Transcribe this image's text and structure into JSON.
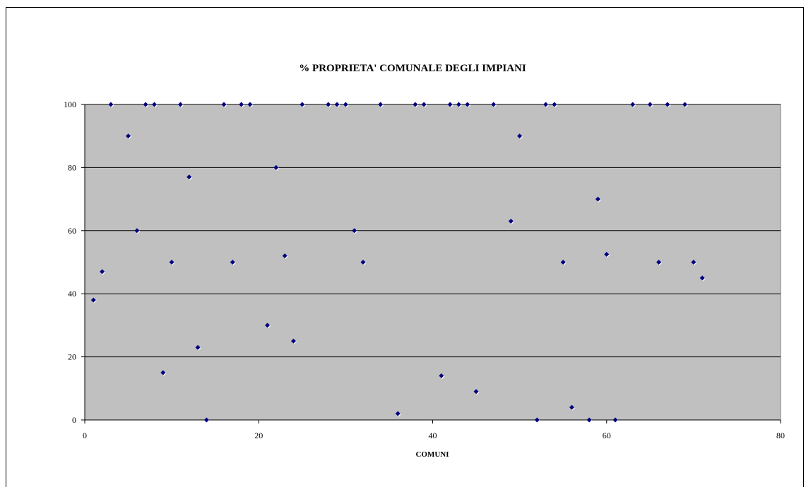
{
  "chart_data": {
    "type": "scatter",
    "title": "% PROPRIETA' COMUNALE DEGLI IMPIANI",
    "xlabel": "COMUNI",
    "ylabel": "",
    "xlim": [
      0,
      80
    ],
    "ylim": [
      0,
      100
    ],
    "x_ticks": [
      0,
      20,
      40,
      60,
      80
    ],
    "y_ticks": [
      0,
      20,
      40,
      60,
      80,
      100
    ],
    "grid": "horizontal",
    "plot_background": "#c0c0c0",
    "marker_color": "#000080",
    "marker": "diamond",
    "points": [
      {
        "x": 1,
        "y": 38
      },
      {
        "x": 2,
        "y": 47
      },
      {
        "x": 3,
        "y": 100
      },
      {
        "x": 5,
        "y": 90
      },
      {
        "x": 6,
        "y": 60
      },
      {
        "x": 7,
        "y": 100
      },
      {
        "x": 8,
        "y": 100
      },
      {
        "x": 9,
        "y": 15
      },
      {
        "x": 10,
        "y": 50
      },
      {
        "x": 11,
        "y": 100
      },
      {
        "x": 12,
        "y": 77
      },
      {
        "x": 13,
        "y": 23
      },
      {
        "x": 14,
        "y": 0
      },
      {
        "x": 16,
        "y": 100
      },
      {
        "x": 17,
        "y": 50
      },
      {
        "x": 18,
        "y": 100
      },
      {
        "x": 19,
        "y": 100
      },
      {
        "x": 21,
        "y": 30
      },
      {
        "x": 22,
        "y": 80
      },
      {
        "x": 23,
        "y": 52
      },
      {
        "x": 24,
        "y": 25
      },
      {
        "x": 25,
        "y": 100
      },
      {
        "x": 28,
        "y": 100
      },
      {
        "x": 29,
        "y": 100
      },
      {
        "x": 30,
        "y": 100
      },
      {
        "x": 31,
        "y": 60
      },
      {
        "x": 32,
        "y": 50
      },
      {
        "x": 34,
        "y": 100
      },
      {
        "x": 36,
        "y": 2
      },
      {
        "x": 38,
        "y": 100
      },
      {
        "x": 39,
        "y": 100
      },
      {
        "x": 41,
        "y": 14
      },
      {
        "x": 42,
        "y": 100
      },
      {
        "x": 43,
        "y": 100
      },
      {
        "x": 44,
        "y": 100
      },
      {
        "x": 45,
        "y": 9
      },
      {
        "x": 47,
        "y": 100
      },
      {
        "x": 49,
        "y": 63
      },
      {
        "x": 50,
        "y": 90
      },
      {
        "x": 52,
        "y": 0
      },
      {
        "x": 53,
        "y": 100
      },
      {
        "x": 54,
        "y": 100
      },
      {
        "x": 55,
        "y": 50
      },
      {
        "x": 56,
        "y": 4
      },
      {
        "x": 58,
        "y": 0
      },
      {
        "x": 59,
        "y": 70
      },
      {
        "x": 60,
        "y": 52.5
      },
      {
        "x": 61,
        "y": 0
      },
      {
        "x": 63,
        "y": 100
      },
      {
        "x": 65,
        "y": 100
      },
      {
        "x": 66,
        "y": 50
      },
      {
        "x": 67,
        "y": 100
      },
      {
        "x": 69,
        "y": 100
      },
      {
        "x": 70,
        "y": 50
      },
      {
        "x": 71,
        "y": 45
      }
    ]
  }
}
